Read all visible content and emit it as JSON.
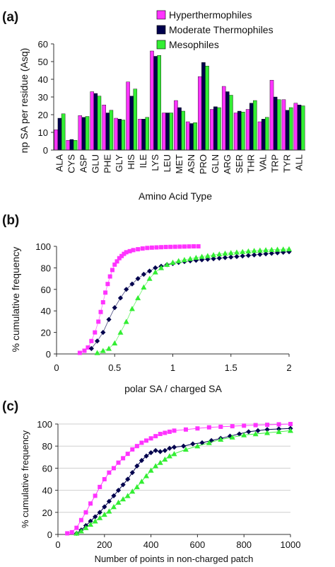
{
  "colors": {
    "hyper": "#ff33ff",
    "moderate": "#00004d",
    "meso": "#33ee33"
  },
  "chart_data": [
    {
      "panel": "(a)",
      "type": "bar",
      "ylabel": "np SA per residue (Asq)",
      "xlabel": "Amino Acid Type",
      "ylim": [
        0,
        60
      ],
      "yticks": [
        0,
        10,
        20,
        30,
        40,
        50,
        60
      ],
      "legend_position": "top-right",
      "categories": [
        "ALA",
        "CYS",
        "ASP",
        "GLU",
        "PHE",
        "GLY",
        "HIS",
        "ILE",
        "LYS",
        "LEU",
        "MET",
        "ASN",
        "PRO",
        "GLN",
        "ARG",
        "SER",
        "THR",
        "VAL",
        "TRP",
        "TYR",
        "ALL"
      ],
      "series": [
        {
          "name": "Hyperthermophiles",
          "values": [
            11.5,
            5.5,
            19.5,
            33,
            25.5,
            18,
            38.5,
            17.5,
            56,
            21,
            28,
            16,
            41.5,
            23,
            36,
            21,
            23,
            16,
            39.5,
            28.5,
            26.5
          ]
        },
        {
          "name": "Moderate Thermophiles",
          "values": [
            18,
            6,
            18.5,
            32,
            21,
            17.5,
            30.5,
            17.5,
            53,
            21,
            24,
            15,
            49.5,
            24.5,
            33,
            22,
            26.5,
            17.5,
            30,
            22.5,
            25.5
          ]
        },
        {
          "name": "Mesophiles",
          "values": [
            20.5,
            5.5,
            19,
            30.5,
            22.5,
            17,
            34.5,
            18.5,
            53.5,
            21,
            22,
            15.5,
            47.5,
            24,
            31,
            21.5,
            28,
            18.5,
            28.5,
            24,
            25
          ]
        }
      ]
    },
    {
      "panel": "(b)",
      "type": "scatter",
      "ylabel": "% cumulative frequency",
      "xlabel": "polar SA / charged SA",
      "xlim": [
        0,
        2
      ],
      "ylim": [
        0,
        100
      ],
      "xticks": [
        0,
        0.5,
        1,
        1.5,
        2
      ],
      "yticks": [
        0,
        20,
        40,
        60,
        80,
        100
      ],
      "series": [
        {
          "key": "hyper",
          "marker": "square",
          "x": [
            0.2,
            0.24,
            0.27,
            0.3,
            0.33,
            0.36,
            0.38,
            0.4,
            0.42,
            0.44,
            0.46,
            0.48,
            0.5,
            0.52,
            0.54,
            0.56,
            0.58,
            0.6,
            0.63,
            0.66,
            0.7,
            0.74,
            0.78,
            0.82,
            0.86,
            0.9,
            0.94,
            0.98,
            1.02,
            1.06,
            1.1,
            1.14,
            1.18,
            1.22
          ],
          "y": [
            1,
            3,
            6,
            12,
            20,
            30,
            39,
            48,
            57,
            65,
            72,
            78,
            83,
            86,
            89,
            91,
            93,
            94.5,
            95.5,
            96.5,
            97.3,
            98,
            98.5,
            98.8,
            99,
            99.2,
            99.4,
            99.5,
            99.6,
            99.7,
            99.8,
            99.9,
            100,
            100
          ]
        },
        {
          "key": "moderate",
          "marker": "diamond",
          "x": [
            0.3,
            0.35,
            0.4,
            0.45,
            0.5,
            0.55,
            0.6,
            0.65,
            0.7,
            0.75,
            0.8,
            0.85,
            0.9,
            0.95,
            1.0,
            1.05,
            1.1,
            1.15,
            1.2,
            1.25,
            1.3,
            1.35,
            1.4,
            1.45,
            1.5,
            1.55,
            1.6,
            1.65,
            1.7,
            1.75,
            1.8,
            1.85,
            1.9,
            1.95,
            2.0
          ],
          "y": [
            5,
            12,
            20,
            32,
            43,
            52,
            60,
            65,
            70,
            74,
            77,
            80,
            81.5,
            83,
            84,
            85,
            85.8,
            86.5,
            87,
            87.5,
            88,
            88.5,
            89,
            89.5,
            90,
            90.5,
            91,
            91.5,
            92,
            92.5,
            93,
            93.5,
            94,
            94.5,
            95
          ]
        },
        {
          "key": "meso",
          "marker": "triangle",
          "x": [
            0.35,
            0.4,
            0.45,
            0.5,
            0.55,
            0.6,
            0.65,
            0.7,
            0.75,
            0.8,
            0.85,
            0.9,
            0.95,
            1.0,
            1.05,
            1.1,
            1.15,
            1.2,
            1.25,
            1.3,
            1.35,
            1.4,
            1.45,
            1.5,
            1.55,
            1.6,
            1.65,
            1.7,
            1.75,
            1.8,
            1.85,
            1.9,
            1.95,
            2.0
          ],
          "y": [
            1,
            3,
            5,
            10,
            20,
            30,
            42,
            52,
            62,
            70,
            76,
            80,
            83,
            85,
            86.5,
            87.5,
            88.5,
            89.5,
            90.5,
            91.2,
            92,
            92.8,
            93.5,
            94,
            94.5,
            95,
            95.5,
            96,
            96.3,
            96.6,
            96.9,
            97.1,
            97.3,
            97.5
          ]
        }
      ]
    },
    {
      "panel": "(c)",
      "type": "line",
      "ylabel": "% cumulative frequency",
      "xlabel": "Number of points in non-charged patch",
      "xlim": [
        0,
        1000
      ],
      "ylim": [
        0,
        100
      ],
      "xticks": [
        0,
        200,
        400,
        600,
        800,
        1000
      ],
      "yticks": [
        0,
        20,
        40,
        60,
        80,
        100
      ],
      "gridlines": "horizontal",
      "series": [
        {
          "key": "hyper",
          "marker": "square",
          "x": [
            40,
            60,
            80,
            100,
            120,
            140,
            160,
            180,
            200,
            220,
            240,
            260,
            280,
            300,
            320,
            340,
            360,
            380,
            400,
            420,
            440,
            460,
            480,
            500,
            550,
            600,
            650,
            700,
            750,
            800,
            850,
            900,
            950,
            1000
          ],
          "y": [
            1,
            2,
            6,
            13,
            20,
            28,
            35,
            43,
            50,
            56,
            60,
            65,
            69,
            73,
            77,
            80,
            83,
            85,
            87,
            89,
            91,
            92,
            93,
            94,
            95,
            96,
            97,
            97.5,
            98,
            98.5,
            99,
            99.3,
            99.7,
            100
          ]
        },
        {
          "key": "moderate",
          "marker": "diamond",
          "x": [
            80,
            100,
            120,
            140,
            160,
            180,
            200,
            220,
            240,
            260,
            280,
            300,
            320,
            340,
            360,
            380,
            400,
            420,
            440,
            460,
            480,
            500,
            540,
            580,
            620,
            660,
            700,
            740,
            780,
            820,
            860,
            900,
            950,
            1000
          ],
          "y": [
            1,
            4,
            8,
            12,
            16,
            20,
            25,
            30,
            35,
            40,
            45,
            50,
            56,
            62,
            67,
            71,
            74,
            76,
            75,
            76,
            78,
            79,
            80,
            82,
            83,
            85,
            87,
            89,
            91,
            93,
            94,
            95,
            95.5,
            96
          ]
        },
        {
          "key": "meso",
          "marker": "triangle",
          "x": [
            80,
            100,
            120,
            140,
            160,
            180,
            200,
            220,
            240,
            260,
            280,
            300,
            320,
            340,
            360,
            380,
            400,
            420,
            440,
            460,
            480,
            500,
            550,
            600,
            650,
            700,
            750,
            800,
            850,
            900,
            950,
            1000
          ],
          "y": [
            1,
            3,
            6,
            9,
            12,
            15,
            18,
            21,
            25,
            29,
            32,
            35,
            39,
            43,
            48,
            53,
            58,
            62,
            65,
            68,
            71,
            73,
            77,
            80,
            83,
            86,
            88,
            90,
            91,
            92,
            93,
            94
          ]
        }
      ]
    }
  ]
}
